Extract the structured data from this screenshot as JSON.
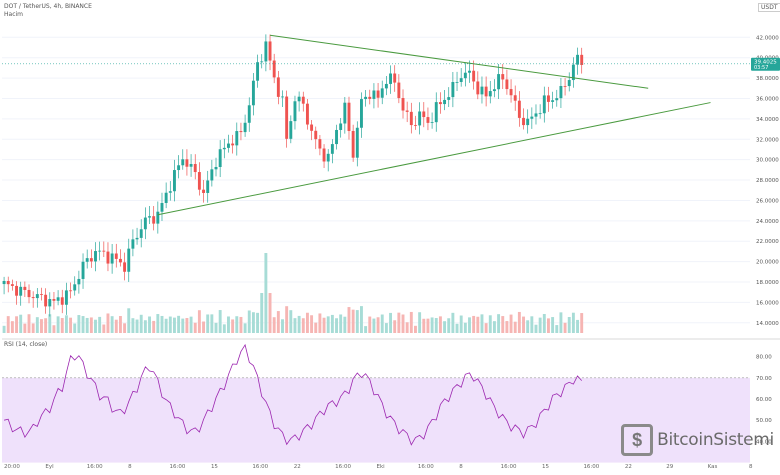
{
  "header": {
    "symbol_line": "DOT / TetherUS, 4h, BINANCE",
    "volume_label": "Hacim",
    "currency": "USDT"
  },
  "price_badge": {
    "value": "39.4025",
    "countdown": "03:57"
  },
  "rsi_label": "RSI (14, close)",
  "watermark": {
    "text": "BitcoinSistemi",
    "icon": "coin-s-icon"
  },
  "colors": {
    "up": "#26a69a",
    "down": "#ef5350",
    "trendline": "#4a9a3f",
    "rsi_line": "#9c27b0",
    "rsi_band": "#efe1fb"
  },
  "chart_data": [
    {
      "type": "candlestick",
      "title": "DOT / TetherUS, 4h, BINANCE",
      "ylabel": "USDT",
      "ylim": [
        13,
        43.5
      ],
      "y_ticks": [
        14,
        16,
        18,
        20,
        22,
        24,
        26,
        28,
        30,
        32,
        34,
        36,
        38,
        40,
        42
      ],
      "x_tick_labels": [
        "20:00",
        "Eyl",
        "16:00",
        "8",
        "16:00",
        "15",
        "16:00",
        "22",
        "16:00",
        "Eki",
        "16:00",
        "8",
        "16:00",
        "15",
        "16:00",
        "22",
        "29",
        "Kas",
        "8"
      ],
      "price_path": [
        [
          0,
          17.8
        ],
        [
          6,
          16.8
        ],
        [
          12,
          16.0
        ],
        [
          16,
          17.0
        ],
        [
          19,
          19.6
        ],
        [
          22,
          21.0
        ],
        [
          26,
          20.4
        ],
        [
          29,
          19.6
        ],
        [
          31,
          22.0
        ],
        [
          34,
          24.0
        ],
        [
          37,
          24.6
        ],
        [
          40,
          27.6
        ],
        [
          43,
          30.2
        ],
        [
          46,
          28.6
        ],
        [
          48,
          26.6
        ],
        [
          51,
          30.0
        ],
        [
          54,
          31.6
        ],
        [
          57,
          32.6
        ],
        [
          59,
          35.4
        ],
        [
          61,
          39.4
        ],
        [
          63,
          41.2
        ],
        [
          65,
          38.0
        ],
        [
          67,
          35.6
        ],
        [
          68,
          32.0
        ],
        [
          70,
          36.0
        ],
        [
          72,
          35.4
        ],
        [
          74,
          32.6
        ],
        [
          76,
          31.0
        ],
        [
          78,
          30.0
        ],
        [
          80,
          33.0
        ],
        [
          82,
          35.0
        ],
        [
          84,
          30.6
        ],
        [
          86,
          35.6
        ],
        [
          88,
          36.6
        ],
        [
          90,
          36.0
        ],
        [
          92,
          38.0
        ],
        [
          94,
          37.6
        ],
        [
          96,
          35.0
        ],
        [
          98,
          33.4
        ],
        [
          100,
          34.4
        ],
        [
          102,
          33.6
        ],
        [
          104,
          35.0
        ],
        [
          106,
          36.0
        ],
        [
          108,
          37.0
        ],
        [
          110,
          38.4
        ],
        [
          112,
          38.4
        ],
        [
          114,
          37.0
        ],
        [
          116,
          36.2
        ],
        [
          118,
          37.4
        ],
        [
          120,
          38.0
        ],
        [
          122,
          36.4
        ],
        [
          124,
          34.2
        ],
        [
          126,
          33.6
        ],
        [
          128,
          34.6
        ],
        [
          130,
          35.6
        ],
        [
          132,
          36.0
        ],
        [
          134,
          36.6
        ],
        [
          136,
          38.2
        ],
        [
          138,
          40.0
        ],
        [
          139,
          39.4
        ]
      ],
      "volume": {
        "label": "Hacim",
        "peak_index": 63
      },
      "annotations": [
        {
          "type": "trendline",
          "name": "upper",
          "from": [
            64,
            42.2
          ],
          "to": [
            155,
            37.0
          ]
        },
        {
          "type": "trendline",
          "name": "lower",
          "from": [
            37,
            24.6
          ],
          "to": [
            170,
            35.6
          ]
        },
        {
          "type": "price_line",
          "value": 39.4025,
          "label": "39.4025"
        }
      ]
    },
    {
      "type": "line",
      "title": "RSI (14, close)",
      "ylim": [
        35,
        85
      ],
      "y_ticks": [
        40,
        50,
        60,
        70,
        80
      ],
      "band": [
        30,
        70
      ],
      "series": [
        {
          "values": [
            50,
            47,
            45,
            44,
            46,
            52,
            54,
            61,
            66,
            78,
            82,
            74,
            69,
            62,
            60,
            55,
            53,
            58,
            64,
            72,
            76,
            68,
            60,
            55,
            50,
            46,
            44,
            48,
            54,
            60,
            66,
            73,
            80,
            84,
            76,
            66,
            56,
            48,
            43,
            40,
            42,
            45,
            48,
            52,
            56,
            58,
            60,
            64,
            70,
            73,
            68,
            62,
            55,
            50,
            46,
            43,
            40,
            42,
            46,
            52,
            58,
            62,
            66,
            70,
            72,
            67,
            62,
            56,
            52,
            48,
            46,
            44,
            46,
            50,
            55,
            60,
            63,
            66,
            70,
            68
          ]
        }
      ]
    }
  ]
}
